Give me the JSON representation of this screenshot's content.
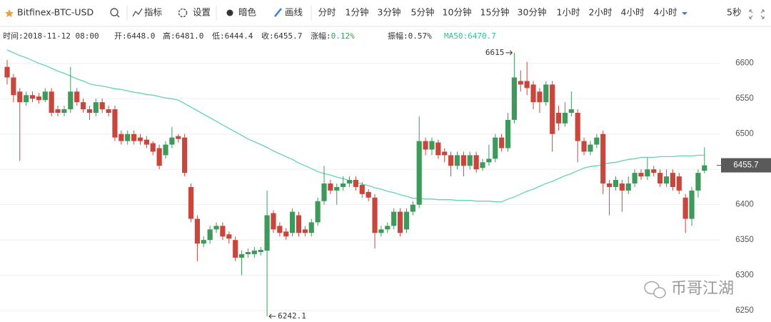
{
  "toolbar": {
    "symbol": "Bitfinex-BTC-USD",
    "buttons": [
      "指标",
      "设置",
      "暗色",
      "画线"
    ],
    "intervals": [
      "分时",
      "1分钟",
      "3分钟",
      "5分钟",
      "10分钟",
      "15分钟",
      "30分钟",
      "1小时",
      "2小时",
      "4小时",
      "4小时"
    ],
    "refresh": "5秒"
  },
  "info_bar": [
    {
      "label": "时间:",
      "value": "2018-11-12 08:00"
    },
    {
      "label": "开:",
      "value": "6448.0"
    },
    {
      "label": "高:",
      "value": "6481.0"
    },
    {
      "label": "低:",
      "value": "6444.4"
    },
    {
      "label": "收:",
      "value": "6455.7"
    },
    {
      "label": "涨幅:",
      "value": "0.12%"
    },
    {
      "label": "振幅:",
      "value": "0.57%"
    },
    {
      "label": "MA50:",
      "value": "6470.7"
    }
  ],
  "watermark": "币哥江湖",
  "chart_data": {
    "type": "candlestick",
    "open": [
      6595,
      6580,
      6560,
      6545,
      6555,
      6553,
      6548,
      6560,
      6535,
      6530,
      6535,
      6560,
      6545,
      6535,
      6530,
      6545,
      6535,
      6535,
      6500,
      6490,
      6500,
      6495,
      6492,
      6487,
      6480,
      6470,
      6485,
      6497,
      6495,
      6425,
      6380,
      6345,
      6350,
      6365,
      6370,
      6358,
      6350,
      6325,
      6330,
      6330,
      6333,
      6335,
      6388,
      6370,
      6362,
      6360,
      6385,
      6365,
      6360,
      6375,
      6405,
      6430,
      6420,
      6425,
      6430,
      6435,
      6428,
      6418,
      6410,
      6360,
      6365,
      6370,
      6390,
      6365,
      6390,
      6400,
      6490,
      6478,
      6488,
      6475,
      6470,
      6455,
      6470,
      6455,
      6470,
      6452,
      6460,
      6465,
      6495,
      6480,
      6520,
      6575,
      6575,
      6570,
      6560,
      6545,
      6570,
      6530,
      6515,
      6530,
      6530,
      6490,
      6475,
      6485,
      6500,
      6430,
      6425,
      6430,
      6420,
      6430,
      6445,
      6440,
      6450,
      6445,
      6430,
      6445,
      6440,
      6410,
      6380,
      6420,
      6448.0
    ],
    "high": [
      6605,
      6585,
      6565,
      6560,
      6560,
      6558,
      6565,
      6565,
      6540,
      6540,
      6595,
      6565,
      6550,
      6540,
      6550,
      6550,
      6540,
      6540,
      6505,
      6505,
      6505,
      6500,
      6497,
      6490,
      6485,
      6490,
      6510,
      6500,
      6500,
      6430,
      6385,
      6355,
      6370,
      6375,
      6375,
      6362,
      6355,
      6335,
      6338,
      6340,
      6340,
      6420,
      6392,
      6375,
      6367,
      6395,
      6390,
      6370,
      6380,
      6410,
      6455,
      6435,
      6430,
      6440,
      6440,
      6440,
      6432,
      6422,
      6415,
      6370,
      6375,
      6395,
      6395,
      6395,
      6405,
      6525,
      6495,
      6495,
      6492,
      6480,
      6475,
      6475,
      6475,
      6475,
      6475,
      6465,
      6485,
      6500,
      6500,
      6530,
      6615,
      6590,
      6602,
      6575,
      6565,
      6575,
      6575,
      6540,
      6545,
      6560,
      6535,
      6495,
      6490,
      6500,
      6505,
      6435,
      6440,
      6435,
      6440,
      6450,
      6450,
      6467,
      6455,
      6450,
      6450,
      6450,
      6445,
      6415,
      6425,
      6450,
      6481.0
    ],
    "low": [
      6570,
      6545,
      6462,
      6540,
      6545,
      6543,
      6545,
      6525,
      6525,
      6525,
      6530,
      6540,
      6530,
      6520,
      6525,
      6530,
      6525,
      6490,
      6485,
      6485,
      6485,
      6485,
      6480,
      6470,
      6450,
      6465,
      6480,
      6488,
      6440,
      6375,
      6320,
      6340,
      6345,
      6360,
      6350,
      6345,
      6320,
      6300,
      6325,
      6325,
      6328,
      6242.1,
      6360,
      6355,
      6350,
      6355,
      6355,
      6355,
      6355,
      6370,
      6400,
      6415,
      6400,
      6420,
      6425,
      6420,
      6410,
      6405,
      6338,
      6355,
      6360,
      6365,
      6355,
      6360,
      6385,
      6395,
      6470,
      6470,
      6465,
      6460,
      6440,
      6450,
      6440,
      6450,
      6445,
      6448,
      6455,
      6460,
      6475,
      6475,
      6515,
      6560,
      6555,
      6535,
      6530,
      6540,
      6475,
      6505,
      6510,
      6525,
      6460,
      6470,
      6470,
      6480,
      6415,
      6385,
      6420,
      6390,
      6415,
      6425,
      6435,
      6435,
      6440,
      6425,
      6425,
      6420,
      6415,
      6360,
      6370,
      6410,
      6444.4
    ],
    "close": [
      6580,
      6555,
      6545,
      6555,
      6550,
      6548,
      6560,
      6530,
      6530,
      6535,
      6560,
      6545,
      6535,
      6530,
      6545,
      6535,
      6530,
      6495,
      6490,
      6500,
      6490,
      6490,
      6485,
      6475,
      6455,
      6485,
      6495,
      6493,
      6445,
      6380,
      6345,
      6350,
      6365,
      6370,
      6355,
      6352,
      6325,
      6330,
      6333,
      6335,
      6336,
      6385,
      6365,
      6360,
      6355,
      6390,
      6360,
      6360,
      6375,
      6405,
      6430,
      6420,
      6425,
      6430,
      6435,
      6425,
      6415,
      6410,
      6360,
      6365,
      6370,
      6390,
      6360,
      6390,
      6400,
      6490,
      6478,
      6490,
      6470,
      6470,
      6455,
      6470,
      6455,
      6470,
      6450,
      6460,
      6465,
      6495,
      6480,
      6520,
      6580,
      6570,
      6565,
      6545,
      6545,
      6570,
      6500,
      6515,
      6530,
      6535,
      6490,
      6475,
      6485,
      6495,
      6430,
      6425,
      6435,
      6420,
      6430,
      6445,
      6440,
      6450,
      6445,
      6430,
      6440,
      6425,
      6420,
      6380,
      6420,
      6445,
      6455.7
    ],
    "ma_values": [
      6619,
      6615,
      6611,
      6608,
      6604,
      6600,
      6597,
      6593,
      6589,
      6586,
      6582,
      6578,
      6575,
      6571,
      6569,
      6568,
      6566,
      6564,
      6563,
      6561,
      6559,
      6558,
      6556,
      6555,
      6553,
      6551,
      6550,
      6548,
      6543,
      6538,
      6533,
      6528,
      6523,
      6518,
      6513,
      6508,
      6503,
      6498,
      6493,
      6489,
      6485,
      6481,
      6476,
      6472,
      6468,
      6464,
      6459,
      6455,
      6451,
      6447,
      6444,
      6442,
      6439,
      6437,
      6434,
      6432,
      6429,
      6427,
      6424,
      6422,
      6419,
      6417,
      6414,
      6412,
      6409,
      6409,
      6408,
      6408,
      6407,
      6407,
      6407,
      6406,
      6406,
      6406,
      6405,
      6405,
      6405,
      6404,
      6404,
      6408,
      6411,
      6415,
      6419,
      6422,
      6426,
      6430,
      6433,
      6437,
      6441,
      6444,
      6448,
      6452,
      6454,
      6455,
      6457,
      6459,
      6460,
      6462,
      6464,
      6465,
      6467,
      6467,
      6467,
      6468,
      6468,
      6468,
      6469,
      6469,
      6469,
      6470,
      6470
    ],
    "up_color": "#3e9a5b",
    "down_color": "#c9463d",
    "ma_color": "#63d3b6",
    "ylim": [
      6235,
      6629
    ],
    "yticks": [
      6250,
      6300,
      6350,
      6400,
      6450,
      6500,
      6550,
      6600
    ],
    "grid": true
  }
}
